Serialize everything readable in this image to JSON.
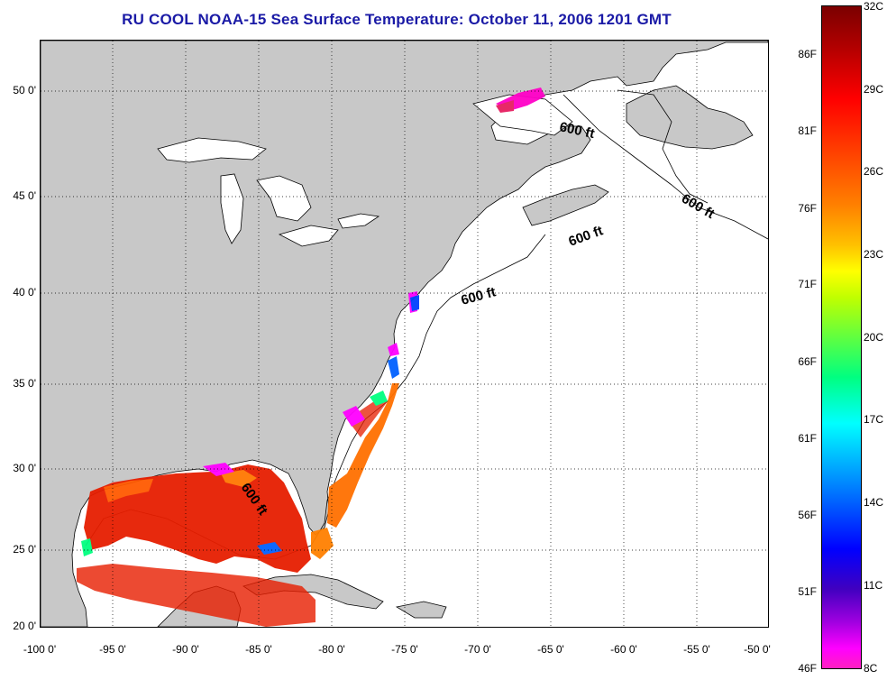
{
  "title": "RU COOL  NOAA-15  Sea Surface Temperature:  October 11, 2006 1201 GMT",
  "map": {
    "y_ticks": [
      "50 0'",
      "45 0'",
      "40 0'",
      "35 0'",
      "30 0'",
      "25 0'",
      "20 0'"
    ],
    "x_ticks": [
      "-100 0'",
      "-95 0'",
      "-90 0'",
      "-85 0'",
      "-80 0'",
      "-75 0'",
      "-70 0'",
      "-65 0'",
      "-60 0'",
      "-55 0'",
      "-50 0'"
    ],
    "isobath_labels": [
      "600 ft",
      "600 ft",
      "600 ft",
      "600 ft",
      "600 ft"
    ],
    "land_color": "#c8c8c8",
    "water_color": "#ffffff",
    "grid": "dotted"
  },
  "colorbar": {
    "fahrenheit": [
      "86F",
      "81F",
      "76F",
      "71F",
      "66F",
      "61F",
      "56F",
      "51F",
      "46F"
    ],
    "celsius": [
      "32C",
      "29C",
      "26C",
      "23C",
      "20C",
      "17C",
      "14C",
      "11C",
      "8C"
    ]
  }
}
